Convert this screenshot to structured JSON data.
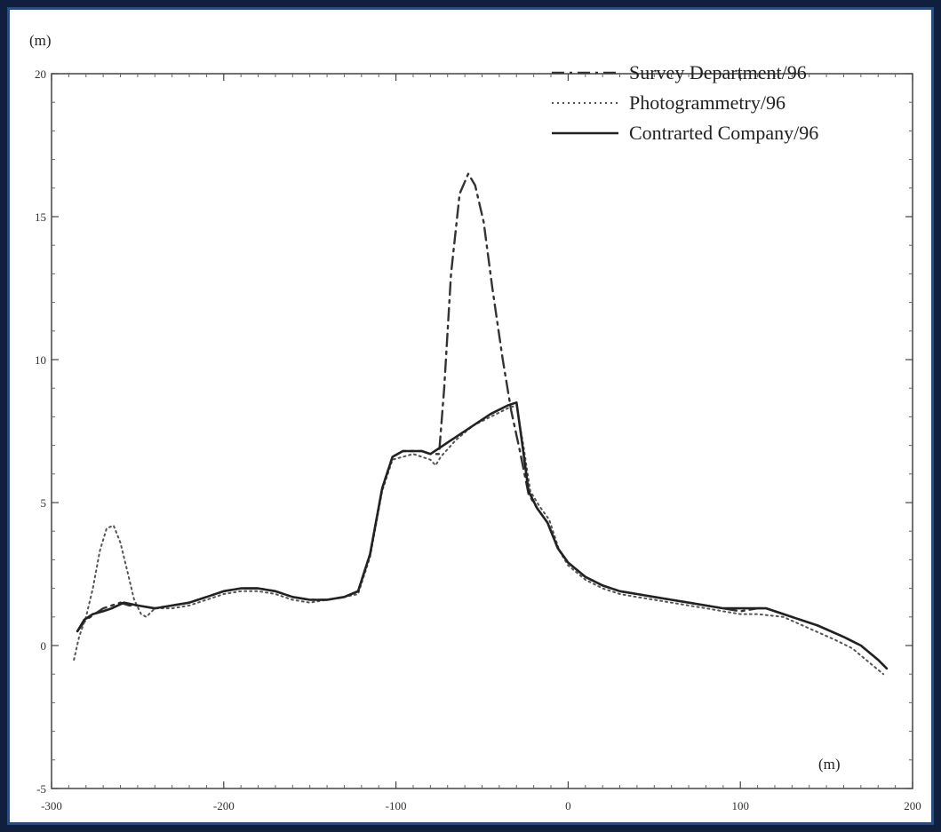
{
  "chart_data": {
    "type": "line",
    "title": "",
    "y_unit_label": "(m)",
    "x_unit_label": "(m)",
    "xlim": [
      -300,
      200
    ],
    "ylim": [
      -5,
      20
    ],
    "xticks": [
      -300,
      -200,
      -100,
      0,
      100,
      200
    ],
    "xtick_labels": [
      "-300",
      "-200",
      "-100",
      "0",
      "100",
      "200"
    ],
    "yticks": [
      -5,
      0,
      5,
      10,
      15,
      20
    ],
    "ytick_labels": [
      "-5",
      "0",
      "5",
      "10",
      "15",
      "20"
    ],
    "grid": false,
    "legend_position": "top-right",
    "series": [
      {
        "name": "Survey Department/96",
        "style": "dashdot",
        "points": [
          [
            -285,
            0.5
          ],
          [
            -280,
            0.9
          ],
          [
            -275,
            1.1
          ],
          [
            -270,
            1.3
          ],
          [
            -265,
            1.4
          ],
          [
            -260,
            1.5
          ],
          [
            -255,
            1.4
          ],
          [
            -250,
            1.4
          ],
          [
            -240,
            1.3
          ],
          [
            -230,
            1.4
          ],
          [
            -220,
            1.5
          ],
          [
            -210,
            1.7
          ],
          [
            -200,
            1.9
          ],
          [
            -190,
            2.0
          ],
          [
            -180,
            2.0
          ],
          [
            -170,
            1.9
          ],
          [
            -160,
            1.7
          ],
          [
            -150,
            1.6
          ],
          [
            -140,
            1.6
          ],
          [
            -130,
            1.7
          ],
          [
            -122,
            1.9
          ],
          [
            -115,
            3.2
          ],
          [
            -108,
            5.5
          ],
          [
            -102,
            6.6
          ],
          [
            -96,
            6.8
          ],
          [
            -90,
            6.8
          ],
          [
            -85,
            6.8
          ],
          [
            -80,
            6.7
          ],
          [
            -75,
            6.7
          ],
          [
            -72,
            9.0
          ],
          [
            -68,
            13.0
          ],
          [
            -63,
            15.8
          ],
          [
            -58,
            16.5
          ],
          [
            -54,
            16.1
          ],
          [
            -49,
            14.8
          ],
          [
            -44,
            12.5
          ],
          [
            -38,
            10.0
          ],
          [
            -33,
            8.2
          ],
          [
            -28,
            6.8
          ],
          [
            -23,
            5.3
          ],
          [
            -18,
            4.8
          ],
          [
            -12,
            4.3
          ],
          [
            -6,
            3.4
          ],
          [
            0,
            2.9
          ],
          [
            10,
            2.4
          ],
          [
            20,
            2.1
          ],
          [
            30,
            1.9
          ],
          [
            40,
            1.8
          ],
          [
            50,
            1.7
          ],
          [
            60,
            1.6
          ],
          [
            70,
            1.5
          ],
          [
            80,
            1.4
          ],
          [
            90,
            1.3
          ],
          [
            100,
            1.2
          ],
          [
            110,
            1.3
          ],
          [
            115,
            1.3
          ],
          [
            130,
            1.0
          ],
          [
            145,
            0.7
          ],
          [
            160,
            0.3
          ],
          [
            170,
            0.0
          ],
          [
            180,
            -0.5
          ],
          [
            185,
            -0.8
          ]
        ]
      },
      {
        "name": "Photogrammetry/96",
        "style": "dotted",
        "points": [
          [
            -287,
            -0.5
          ],
          [
            -284,
            0.3
          ],
          [
            -280,
            1.0
          ],
          [
            -276,
            2.0
          ],
          [
            -272,
            3.3
          ],
          [
            -268,
            4.1
          ],
          [
            -264,
            4.2
          ],
          [
            -260,
            3.6
          ],
          [
            -256,
            2.6
          ],
          [
            -252,
            1.6
          ],
          [
            -248,
            1.1
          ],
          [
            -245,
            1.0
          ],
          [
            -240,
            1.3
          ],
          [
            -230,
            1.3
          ],
          [
            -220,
            1.4
          ],
          [
            -210,
            1.6
          ],
          [
            -200,
            1.8
          ],
          [
            -190,
            1.9
          ],
          [
            -180,
            1.9
          ],
          [
            -170,
            1.8
          ],
          [
            -160,
            1.6
          ],
          [
            -150,
            1.5
          ],
          [
            -140,
            1.6
          ],
          [
            -130,
            1.7
          ],
          [
            -122,
            1.8
          ],
          [
            -115,
            3.1
          ],
          [
            -108,
            5.4
          ],
          [
            -102,
            6.5
          ],
          [
            -96,
            6.6
          ],
          [
            -90,
            6.7
          ],
          [
            -85,
            6.6
          ],
          [
            -80,
            6.5
          ],
          [
            -77,
            6.3
          ],
          [
            -74,
            6.6
          ],
          [
            -65,
            7.2
          ],
          [
            -55,
            7.7
          ],
          [
            -45,
            8.0
          ],
          [
            -35,
            8.3
          ],
          [
            -30,
            8.4
          ],
          [
            -26,
            7.0
          ],
          [
            -22,
            5.4
          ],
          [
            -17,
            4.9
          ],
          [
            -11,
            4.4
          ],
          [
            -5,
            3.3
          ],
          [
            0,
            2.8
          ],
          [
            10,
            2.3
          ],
          [
            20,
            2.0
          ],
          [
            30,
            1.8
          ],
          [
            40,
            1.7
          ],
          [
            50,
            1.6
          ],
          [
            60,
            1.5
          ],
          [
            70,
            1.4
          ],
          [
            80,
            1.3
          ],
          [
            90,
            1.2
          ],
          [
            100,
            1.1
          ],
          [
            110,
            1.1
          ],
          [
            125,
            1.0
          ],
          [
            140,
            0.6
          ],
          [
            155,
            0.2
          ],
          [
            165,
            -0.1
          ],
          [
            175,
            -0.6
          ],
          [
            183,
            -1.0
          ]
        ]
      },
      {
        "name": "Contrarted Company/96",
        "style": "solid",
        "points": [
          [
            -285,
            0.5
          ],
          [
            -281,
            0.9
          ],
          [
            -276,
            1.1
          ],
          [
            -270,
            1.2
          ],
          [
            -265,
            1.3
          ],
          [
            -258,
            1.5
          ],
          [
            -250,
            1.4
          ],
          [
            -240,
            1.3
          ],
          [
            -230,
            1.4
          ],
          [
            -220,
            1.5
          ],
          [
            -210,
            1.7
          ],
          [
            -200,
            1.9
          ],
          [
            -190,
            2.0
          ],
          [
            -180,
            2.0
          ],
          [
            -170,
            1.9
          ],
          [
            -160,
            1.7
          ],
          [
            -150,
            1.6
          ],
          [
            -140,
            1.6
          ],
          [
            -130,
            1.7
          ],
          [
            -122,
            1.9
          ],
          [
            -115,
            3.2
          ],
          [
            -108,
            5.5
          ],
          [
            -102,
            6.6
          ],
          [
            -96,
            6.8
          ],
          [
            -90,
            6.8
          ],
          [
            -85,
            6.8
          ],
          [
            -80,
            6.7
          ],
          [
            -75,
            6.9
          ],
          [
            -65,
            7.3
          ],
          [
            -55,
            7.7
          ],
          [
            -45,
            8.1
          ],
          [
            -35,
            8.4
          ],
          [
            -30,
            8.5
          ],
          [
            -27,
            7.2
          ],
          [
            -23,
            5.4
          ],
          [
            -18,
            4.8
          ],
          [
            -12,
            4.3
          ],
          [
            -6,
            3.4
          ],
          [
            0,
            2.9
          ],
          [
            10,
            2.4
          ],
          [
            20,
            2.1
          ],
          [
            30,
            1.9
          ],
          [
            40,
            1.8
          ],
          [
            50,
            1.7
          ],
          [
            60,
            1.6
          ],
          [
            70,
            1.5
          ],
          [
            80,
            1.4
          ],
          [
            90,
            1.3
          ],
          [
            100,
            1.3
          ],
          [
            110,
            1.3
          ],
          [
            115,
            1.3
          ],
          [
            130,
            1.0
          ],
          [
            145,
            0.7
          ],
          [
            160,
            0.3
          ],
          [
            170,
            0.0
          ],
          [
            180,
            -0.5
          ],
          [
            185,
            -0.8
          ]
        ]
      }
    ]
  },
  "colors": {
    "background": "#0f1f3d",
    "frame_border": "#2c4a7a",
    "plot_background": "#ffffff",
    "ink": "#333333"
  }
}
